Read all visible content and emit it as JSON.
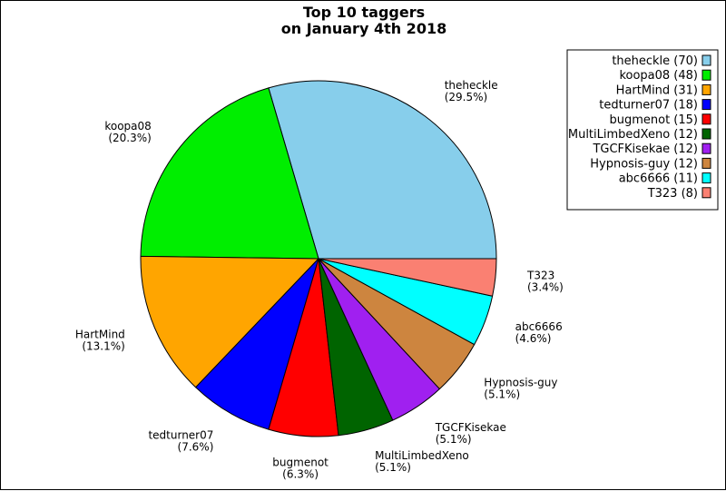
{
  "chart_data": {
    "type": "pie",
    "title_lines": [
      "Top 10 taggers",
      "on January 4th 2018"
    ],
    "legend_placement": "top-right",
    "slices": [
      {
        "name": "theheckle",
        "value": 70,
        "percent_label": "(29.5%)",
        "legend_label": "theheckle (70)",
        "color": "#87ceeb"
      },
      {
        "name": "koopa08",
        "value": 48,
        "percent_label": "(20.3%)",
        "legend_label": "koopa08 (48)",
        "color": "#00ee00"
      },
      {
        "name": "HartMind",
        "value": 31,
        "percent_label": "(13.1%)",
        "legend_label": "HartMind (31)",
        "color": "#ffa500"
      },
      {
        "name": "tedturner07",
        "value": 18,
        "percent_label": "(7.6%)",
        "legend_label": "tedturner07 (18)",
        "color": "#0000ff"
      },
      {
        "name": "bugmenot",
        "value": 15,
        "percent_label": "(6.3%)",
        "legend_label": "bugmenot (15)",
        "color": "#ff0000"
      },
      {
        "name": "MultiLimbedXeno",
        "value": 12,
        "percent_label": "(5.1%)",
        "legend_label": "MultiLimbedXeno (12)",
        "color": "#006400"
      },
      {
        "name": "TGCFKisekae",
        "value": 12,
        "percent_label": "(5.1%)",
        "legend_label": "TGCFKisekae (12)",
        "color": "#a020f0"
      },
      {
        "name": "Hypnosis-guy",
        "value": 12,
        "percent_label": "(5.1%)",
        "legend_label": "Hypnosis-guy (12)",
        "color": "#cd853f"
      },
      {
        "name": "abc6666",
        "value": 11,
        "percent_label": "(4.6%)",
        "legend_label": "abc6666 (11)",
        "color": "#00ffff"
      },
      {
        "name": "T323",
        "value": 8,
        "percent_label": "(3.4%)",
        "legend_label": "T323 (8)",
        "color": "#fa8072"
      }
    ]
  }
}
